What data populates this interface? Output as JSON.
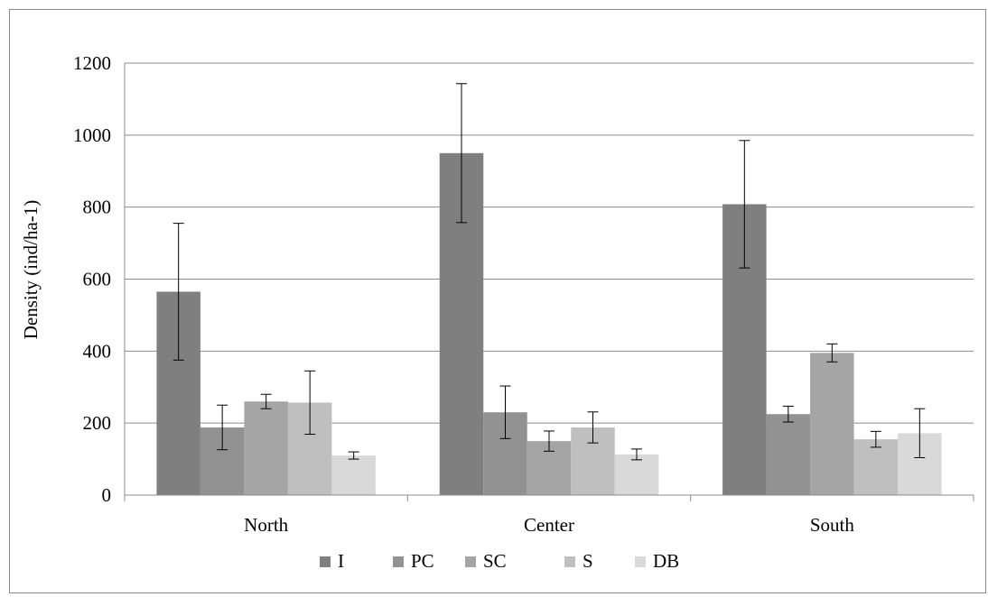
{
  "chart_data": {
    "type": "bar",
    "title": "",
    "xlabel": "",
    "ylabel": "Density (ind/ha-1)",
    "ylim": [
      0,
      1200
    ],
    "yticks": [
      0,
      200,
      400,
      600,
      800,
      1000,
      1200
    ],
    "grid": true,
    "legend_position": "bottom",
    "categories": [
      "North",
      "Center",
      "South"
    ],
    "series": [
      {
        "name": "I",
        "color": "#7f7f7f",
        "values": [
          565,
          950,
          808
        ],
        "errors": [
          190,
          193,
          177
        ]
      },
      {
        "name": "PC",
        "color": "#929292",
        "values": [
          188,
          230,
          225
        ],
        "errors": [
          62,
          73,
          22
        ]
      },
      {
        "name": "SC",
        "color": "#a5a5a5",
        "values": [
          260,
          150,
          395
        ],
        "errors": [
          20,
          28,
          25
        ]
      },
      {
        "name": "S",
        "color": "#bfbfbf",
        "values": [
          257,
          188,
          155
        ],
        "errors": [
          88,
          43,
          22
        ]
      },
      {
        "name": "DB",
        "color": "#d9d9d9",
        "values": [
          110,
          113,
          172
        ],
        "errors": [
          10,
          15,
          68
        ]
      }
    ]
  }
}
